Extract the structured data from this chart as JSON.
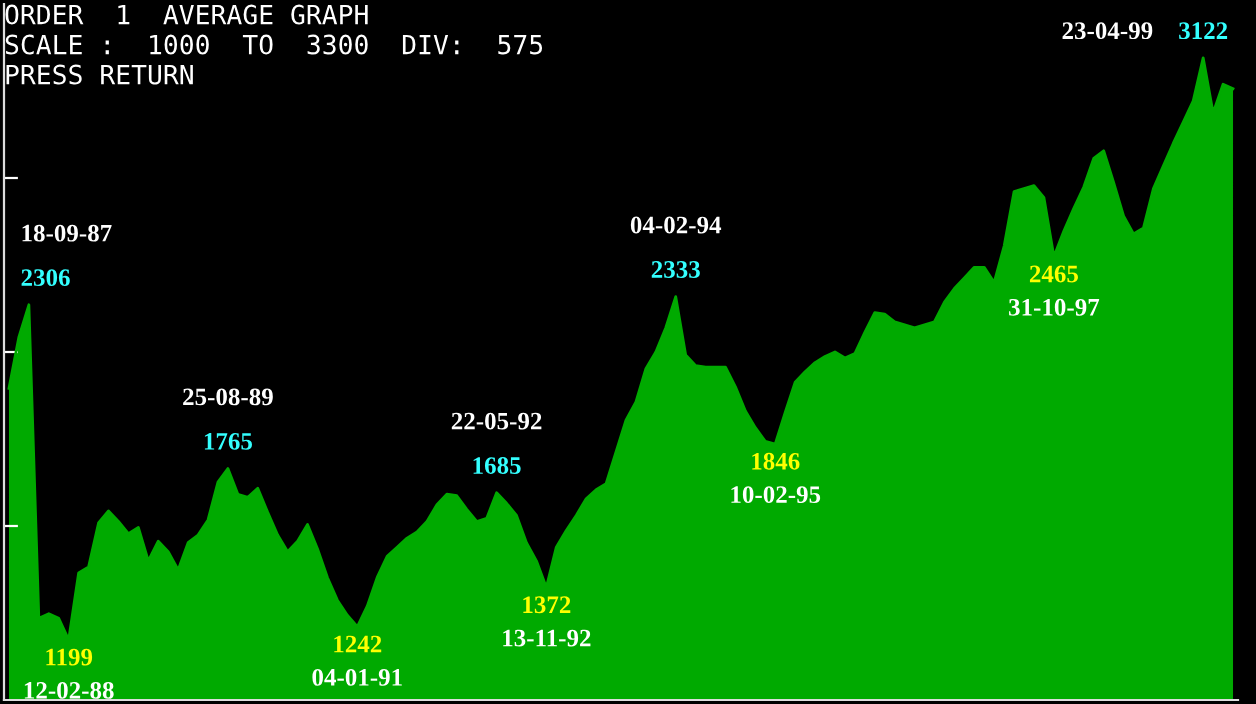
{
  "chart_data": {
    "type": "area",
    "title": "ORDER  1  AVERAGE GRAPH",
    "subtitle": "SCALE :  1000  TO  3300  DIV:  575",
    "categories": [
      null,
      null,
      null,
      null,
      null,
      null,
      null,
      null,
      null,
      null,
      null,
      null,
      null,
      null,
      null,
      null,
      null,
      null,
      null,
      null,
      null,
      null,
      null,
      null,
      null,
      null,
      null,
      null,
      null,
      null,
      null,
      null,
      null,
      null,
      null,
      null,
      null,
      null,
      null,
      null,
      null,
      null,
      null,
      null,
      null,
      null,
      null,
      null,
      null,
      null,
      null,
      null,
      null,
      null,
      null,
      null,
      null,
      null,
      null,
      null,
      null,
      null,
      null,
      null,
      null,
      null,
      null,
      null,
      null,
      null,
      null,
      null,
      null,
      null,
      null,
      null,
      null,
      null,
      null,
      null,
      null,
      null,
      null,
      null,
      null,
      null,
      null,
      null,
      null,
      null,
      null,
      null,
      null,
      null,
      null,
      null,
      null,
      null,
      null,
      null,
      null,
      null,
      null,
      null,
      null,
      null,
      null,
      null,
      null,
      null,
      null,
      null,
      null,
      null,
      null,
      null,
      null,
      null,
      null,
      null,
      null,
      null,
      null,
      null
    ],
    "series": [
      {
        "color": "#00aa00",
        "values": [
          2030,
          2200,
          2306,
          1270,
          1285,
          1270,
          1199,
          1420,
          1440,
          1585,
          1625,
          1590,
          1550,
          1570,
          1460,
          1525,
          1490,
          1430,
          1520,
          1545,
          1595,
          1720,
          1765,
          1680,
          1670,
          1700,
          1620,
          1545,
          1490,
          1525,
          1580,
          1500,
          1405,
          1330,
          1280,
          1242,
          1310,
          1405,
          1475,
          1505,
          1535,
          1555,
          1590,
          1645,
          1680,
          1675,
          1630,
          1590,
          1600,
          1685,
          1650,
          1610,
          1520,
          1460,
          1372,
          1505,
          1560,
          1610,
          1665,
          1695,
          1715,
          1820,
          1925,
          1985,
          2095,
          2150,
          2230,
          2333,
          2140,
          2105,
          2100,
          2100,
          2100,
          2035,
          1955,
          1900,
          1855,
          1846,
          1950,
          2050,
          2085,
          2115,
          2135,
          2150,
          2130,
          2145,
          2215,
          2280,
          2275,
          2250,
          2240,
          2230,
          2240,
          2250,
          2315,
          2360,
          2395,
          2430,
          2430,
          2380,
          2500,
          2680,
          2690,
          2700,
          2660,
          2465,
          2550,
          2625,
          2695,
          2790,
          2815,
          2710,
          2600,
          2540,
          2560,
          2690,
          2765,
          2840,
          2910,
          2980,
          3122,
          2940,
          3035,
          3020
        ],
        "value_labels": [
          null,
          null,
          "2306",
          null,
          null,
          null,
          "1199",
          null,
          null,
          null,
          null,
          null,
          null,
          null,
          null,
          null,
          null,
          null,
          null,
          null,
          null,
          null,
          "1765",
          null,
          null,
          null,
          null,
          null,
          null,
          null,
          null,
          null,
          null,
          null,
          null,
          "1242",
          null,
          null,
          null,
          null,
          null,
          null,
          null,
          null,
          null,
          null,
          null,
          null,
          null,
          "1685",
          null,
          null,
          null,
          null,
          "1372",
          null,
          null,
          null,
          null,
          null,
          null,
          null,
          null,
          null,
          null,
          null,
          null,
          "2333",
          null,
          null,
          null,
          null,
          null,
          null,
          null,
          null,
          null,
          "1846",
          null,
          null,
          null,
          null,
          null,
          null,
          null,
          null,
          null,
          null,
          null,
          null,
          null,
          null,
          null,
          null,
          null,
          null,
          null,
          null,
          null,
          null,
          null,
          null,
          null,
          null,
          null,
          "2465",
          null,
          null,
          null,
          null,
          null,
          null,
          null,
          null,
          null,
          null,
          null,
          null,
          null,
          null,
          "3122",
          null,
          null,
          null
        ]
      }
    ],
    "ylim": [
      1000,
      3300
    ],
    "yticks": [
      {
        "value": 1575,
        "label": null
      },
      {
        "value": 2150,
        "label": null
      },
      {
        "value": 2725,
        "label": null
      }
    ],
    "annotations": [
      "PRESS RETURN",
      "18-09-87",
      "12-02-88",
      "25-08-89",
      "04-01-91",
      "22-05-92",
      "13-11-92",
      "04-02-94",
      "10-02-95",
      "31-10-97",
      "23-04-99"
    ]
  }
}
